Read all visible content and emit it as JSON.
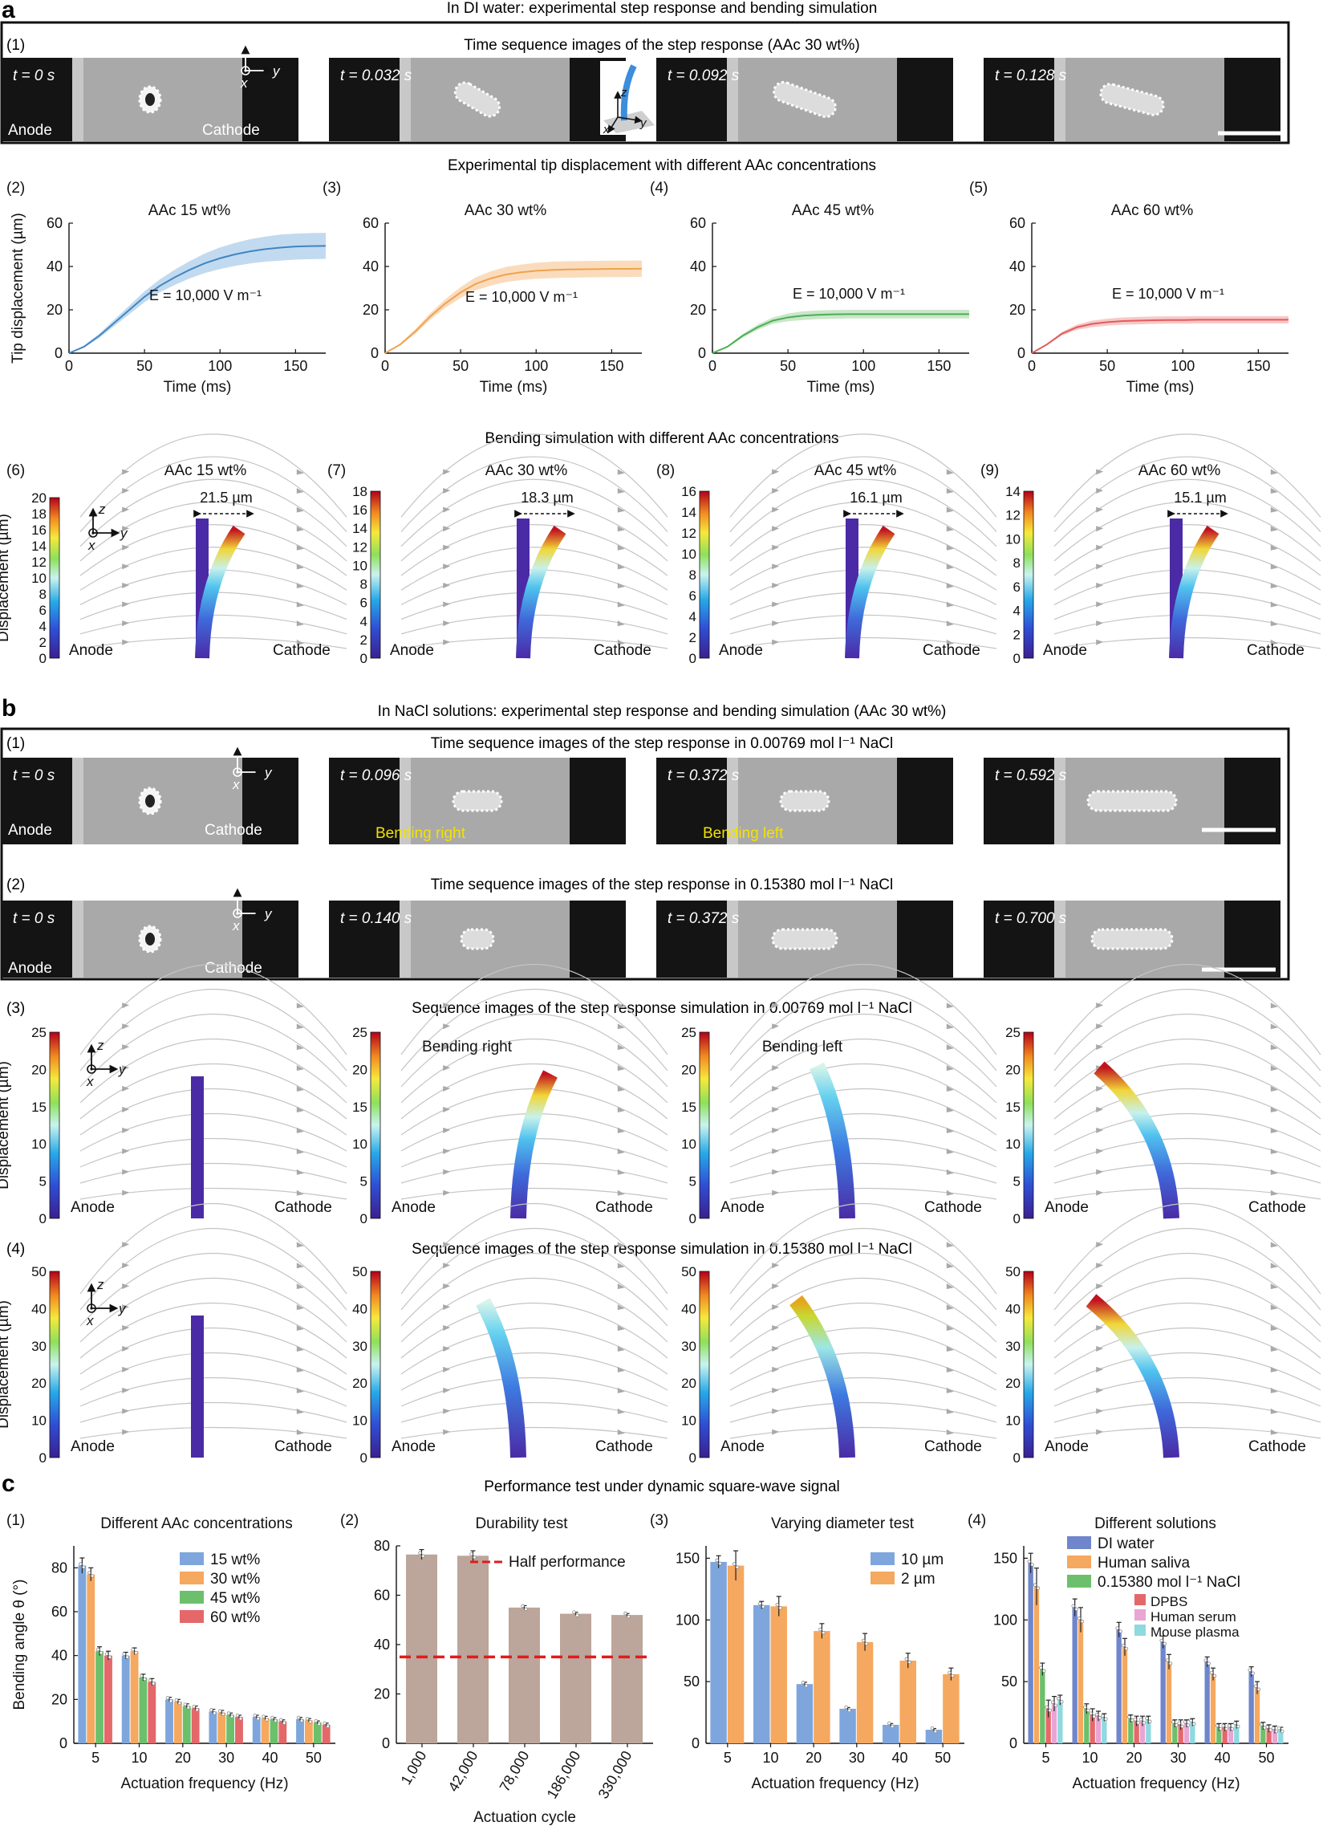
{
  "panels": {
    "a": {
      "letter": "a",
      "title": "In DI water: experimental step response and bending simulation",
      "images": {
        "label": "(1)",
        "title": "Time sequence images of the step response (AAc 30 wt%)",
        "times": [
          "t = 0 s",
          "t = 0.032 s",
          "t = 0.092 s",
          "t = 0.128 s"
        ],
        "anode": "Anode",
        "cathode": "Cathode"
      },
      "tip_title": "Experimental tip displacement with different AAc concentrations",
      "sim_title": "Bending simulation with different AAc concentrations"
    },
    "b": {
      "letter": "b",
      "title": "In NaCl solutions: experimental step response and bending simulation (AAc 30 wt%)",
      "row1": {
        "label": "(1)",
        "title": "Time sequence images of the step response in 0.00769 mol l⁻¹ NaCl",
        "times": [
          "t = 0 s",
          "t = 0.096 s",
          "t = 0.372 s",
          "t = 0.592 s"
        ],
        "notes": [
          "Bending right",
          "Bending left"
        ]
      },
      "row2": {
        "label": "(2)",
        "title": "Time sequence images of the step response in 0.15380 mol l⁻¹ NaCl",
        "times": [
          "t = 0 s",
          "t = 0.140 s",
          "t = 0.372 s",
          "t = 0.700 s"
        ]
      },
      "row3": {
        "label": "(3)",
        "title": "Sequence images of the step response simulation in 0.00769 mol l⁻¹ NaCl",
        "notes": [
          "Bending right",
          "Bending left"
        ]
      },
      "row4": {
        "label": "(4)",
        "title": "Sequence images of the step response simulation in 0.15380 mol l⁻¹ NaCl"
      },
      "anode": "Anode",
      "cathode": "Cathode"
    },
    "c": {
      "letter": "c",
      "title": "Performance test under dynamic square-wave signal"
    }
  },
  "axis_symbols": {
    "z": "z",
    "y": "y",
    "x": "x"
  },
  "colorbar_ylabel": "Displacement (µm)",
  "chart_data": [
    {
      "id": "a2",
      "type": "line",
      "label": "(2)",
      "title": "AAc 15 wt%",
      "xlabel": "Time (ms)",
      "ylabel": "Tip displacement (µm)",
      "xlim": [
        0,
        170
      ],
      "ylim": [
        0,
        60
      ],
      "xticks": [
        0,
        50,
        100,
        150
      ],
      "yticks": [
        0,
        20,
        40,
        60
      ],
      "annotation": "E = 10,000 V m⁻¹",
      "color": "#3f86c3",
      "band": "#b7d3ec",
      "x": [
        0,
        10,
        20,
        30,
        40,
        50,
        60,
        70,
        80,
        90,
        100,
        110,
        120,
        130,
        140,
        150,
        160,
        170
      ],
      "y": [
        0,
        3,
        8,
        14,
        20,
        26,
        31,
        35,
        38.5,
        41.5,
        43.8,
        45.6,
        47,
        48,
        48.7,
        49.2,
        49.4,
        49.5
      ],
      "err": [
        0,
        0.5,
        1,
        1.5,
        2,
        2.5,
        3,
        3.5,
        4,
        4.5,
        5,
        5.3,
        5.6,
        5.8,
        6,
        6,
        6,
        6
      ]
    },
    {
      "id": "a3",
      "type": "line",
      "label": "(3)",
      "title": "AAc 30 wt%",
      "xlabel": "Time (ms)",
      "ylabel": "",
      "xlim": [
        0,
        170
      ],
      "ylim": [
        0,
        60
      ],
      "xticks": [
        0,
        50,
        100,
        150
      ],
      "yticks": [
        0,
        20,
        40,
        60
      ],
      "annotation": "E = 10,000 V m⁻¹",
      "color": "#f0a24e",
      "band": "#f9d6b2",
      "x": [
        0,
        10,
        20,
        30,
        40,
        50,
        60,
        70,
        80,
        90,
        100,
        110,
        120,
        130,
        140,
        150,
        160,
        170
      ],
      "y": [
        0,
        4,
        10,
        17,
        23,
        28,
        32,
        34.5,
        36.3,
        37.3,
        38,
        38.4,
        38.6,
        38.7,
        38.8,
        38.9,
        38.9,
        39
      ],
      "err": [
        0,
        0.5,
        1,
        1.5,
        2,
        2.5,
        3,
        3.3,
        3.5,
        3.6,
        3.7,
        3.8,
        3.8,
        3.8,
        3.8,
        3.8,
        3.8,
        3.8
      ]
    },
    {
      "id": "a4",
      "type": "line",
      "label": "(4)",
      "title": "AAc 45 wt%",
      "xlabel": "Time (ms)",
      "ylabel": "",
      "xlim": [
        0,
        170
      ],
      "ylim": [
        0,
        60
      ],
      "xticks": [
        0,
        50,
        100,
        150
      ],
      "yticks": [
        0,
        20,
        40,
        60
      ],
      "annotation": "E = 10,000 V m⁻¹",
      "color": "#4caf50",
      "band": "#bfe3bf",
      "x": [
        0,
        10,
        20,
        30,
        40,
        50,
        60,
        70,
        80,
        90,
        100,
        110,
        120,
        130,
        140,
        150,
        160,
        170
      ],
      "y": [
        0,
        3,
        8,
        12,
        15,
        16.5,
        17.3,
        17.7,
        17.9,
        18,
        18,
        18,
        18,
        18,
        18,
        18,
        18,
        18
      ],
      "err": [
        0,
        0.4,
        0.8,
        1.2,
        1.5,
        1.8,
        2,
        2,
        2,
        2,
        2,
        2,
        2,
        2,
        2,
        2,
        2,
        2
      ]
    },
    {
      "id": "a5",
      "type": "line",
      "label": "(5)",
      "title": "AAc 60 wt%",
      "xlabel": "Time (ms)",
      "ylabel": "",
      "xlim": [
        0,
        170
      ],
      "ylim": [
        0,
        60
      ],
      "xticks": [
        0,
        50,
        100,
        150
      ],
      "yticks": [
        0,
        20,
        40,
        60
      ],
      "annotation": "E = 10,000 V m⁻¹",
      "color": "#e35b5b",
      "band": "#f4c0c0",
      "x": [
        0,
        10,
        20,
        30,
        40,
        50,
        60,
        70,
        80,
        90,
        100,
        110,
        120,
        130,
        140,
        150,
        160,
        170
      ],
      "y": [
        0,
        4,
        9,
        12,
        13.5,
        14.3,
        14.8,
        15,
        15.2,
        15.3,
        15.3,
        15.4,
        15.4,
        15.4,
        15.4,
        15.4,
        15.4,
        15.4
      ],
      "err": [
        0,
        0.4,
        0.8,
        1.2,
        1.5,
        1.6,
        1.7,
        1.7,
        1.7,
        1.7,
        1.7,
        1.7,
        1.7,
        1.7,
        1.7,
        1.7,
        1.7,
        1.7
      ]
    },
    {
      "id": "c1",
      "type": "bar",
      "label": "(1)",
      "title": "Different AAc concentrations",
      "xlabel": "Actuation frequency (Hz)",
      "ylabel": "Bending angle θ (°)",
      "ylim": [
        0,
        90
      ],
      "yticks": [
        0,
        20,
        40,
        60,
        80
      ],
      "categories": [
        "5",
        "10",
        "20",
        "30",
        "40",
        "50"
      ],
      "series": [
        {
          "name": "15 wt%",
          "color": "#7ea6dd",
          "values": [
            81,
            40,
            20,
            14.5,
            12,
            11
          ],
          "err": [
            3.5,
            1.5,
            1,
            1,
            0.8,
            0.8
          ]
        },
        {
          "name": "30 wt%",
          "color": "#f5a85f",
          "values": [
            77,
            42,
            19,
            14,
            11.5,
            10.5
          ],
          "err": [
            3,
            1.5,
            1,
            1,
            0.8,
            0.8
          ]
        },
        {
          "name": "45 wt%",
          "color": "#6cc06c",
          "values": [
            42,
            30,
            17,
            13,
            11,
            9.5
          ],
          "err": [
            2,
            1.5,
            1,
            0.8,
            0.7,
            0.7
          ]
        },
        {
          "name": "60 wt%",
          "color": "#e4686a",
          "values": [
            40,
            28,
            16,
            12,
            10,
            8.5
          ],
          "err": [
            2,
            1.5,
            1,
            0.8,
            0.7,
            0.7
          ]
        }
      ]
    },
    {
      "id": "c2",
      "type": "bar",
      "label": "(2)",
      "title": "Durability test",
      "xlabel": "Actuation cycle",
      "ylabel": "",
      "ylim": [
        0,
        80
      ],
      "yticks": [
        0,
        20,
        40,
        60,
        80
      ],
      "categories": [
        "1,000",
        "42,000",
        "78,000",
        "186,000",
        "330,000"
      ],
      "series": [
        {
          "name": "",
          "color": "#bca59b",
          "values": [
            76.5,
            76,
            55,
            52.5,
            52
          ],
          "err": [
            2,
            2,
            0.8,
            0.6,
            0.6
          ]
        }
      ],
      "reference_line": {
        "name": "Half performance",
        "value": 35,
        "color": "#e31a1c"
      }
    },
    {
      "id": "c3",
      "type": "bar",
      "label": "(3)",
      "title": "Varying diameter test",
      "xlabel": "Actuation frequency (Hz)",
      "ylabel": "",
      "ylim": [
        0,
        160
      ],
      "yticks": [
        0,
        50,
        100,
        150
      ],
      "categories": [
        "5",
        "10",
        "20",
        "30",
        "40",
        "50"
      ],
      "series": [
        {
          "name": "10 µm",
          "color": "#7ea6dd",
          "values": [
            147,
            112,
            48,
            28,
            15,
            11
          ],
          "err": [
            5,
            3,
            1.5,
            1,
            1,
            1
          ]
        },
        {
          "name": "2 µm",
          "color": "#f5a85f",
          "values": [
            144,
            111,
            91,
            82,
            67,
            56
          ],
          "err": [
            12,
            8,
            6,
            7,
            6,
            5
          ]
        }
      ]
    },
    {
      "id": "c4",
      "type": "bar",
      "label": "(4)",
      "title": "Different solutions",
      "xlabel": "Actuation frequency (Hz)",
      "ylabel": "",
      "ylim": [
        0,
        160
      ],
      "yticks": [
        0,
        50,
        100,
        150
      ],
      "categories": [
        "5",
        "10",
        "20",
        "30",
        "40",
        "50"
      ],
      "series": [
        {
          "name": "DI water",
          "color": "#6f86cc",
          "values": [
            146,
            110,
            92,
            82,
            66,
            58
          ],
          "err": [
            8,
            7,
            6,
            5,
            4,
            4
          ]
        },
        {
          "name": "Human saliva",
          "color": "#f5a85f",
          "values": [
            127,
            100,
            78,
            66,
            56,
            45
          ],
          "err": [
            15,
            10,
            7,
            6,
            5,
            5
          ]
        },
        {
          "name": "0.15380 mol l⁻¹ NaCl",
          "color": "#6cc06c",
          "values": [
            60,
            28,
            20,
            16,
            13,
            14
          ],
          "err": [
            5,
            4,
            3,
            3,
            3,
            3
          ]
        },
        {
          "name": "DPBS",
          "color": "#e4686a",
          "values": [
            28,
            23,
            18,
            15,
            13,
            12
          ],
          "err": [
            7,
            5,
            4,
            4,
            3,
            3
          ]
        },
        {
          "name": "Human serum",
          "color": "#e9a5d3",
          "values": [
            32,
            22,
            18,
            16,
            13,
            11
          ],
          "err": [
            6,
            4,
            4,
            3,
            3,
            3
          ]
        },
        {
          "name": "Mouse plasma",
          "color": "#8fd9e0",
          "values": [
            35,
            21,
            19,
            17,
            15,
            11
          ],
          "err": [
            4,
            3,
            3,
            3,
            3,
            2
          ]
        }
      ]
    }
  ],
  "simulations": {
    "a": [
      {
        "label": "(6)",
        "title": "AAc 15 wt%",
        "ticks": [
          "20",
          "18",
          "16",
          "14",
          "12",
          "10",
          "8",
          "6",
          "4",
          "2",
          "0"
        ],
        "dim": "21.5 µm"
      },
      {
        "label": "(7)",
        "title": "AAc 30 wt%",
        "ticks": [
          "18",
          "16",
          "14",
          "12",
          "10",
          "8",
          "6",
          "4",
          "2",
          "0"
        ],
        "dim": "18.3 µm"
      },
      {
        "label": "(8)",
        "title": "AAc 45 wt%",
        "ticks": [
          "16",
          "14",
          "12",
          "10",
          "8",
          "6",
          "4",
          "2",
          "0"
        ],
        "dim": "16.1 µm"
      },
      {
        "label": "(9)",
        "title": "AAc 60 wt%",
        "ticks": [
          "14",
          "12",
          "10",
          "8",
          "6",
          "4",
          "2",
          "0"
        ],
        "dim": "15.1 µm"
      }
    ],
    "b3_ticks": [
      "25",
      "20",
      "15",
      "10",
      "5",
      "0"
    ],
    "b4_ticks": [
      "50",
      "40",
      "30",
      "20",
      "10",
      "0"
    ]
  }
}
